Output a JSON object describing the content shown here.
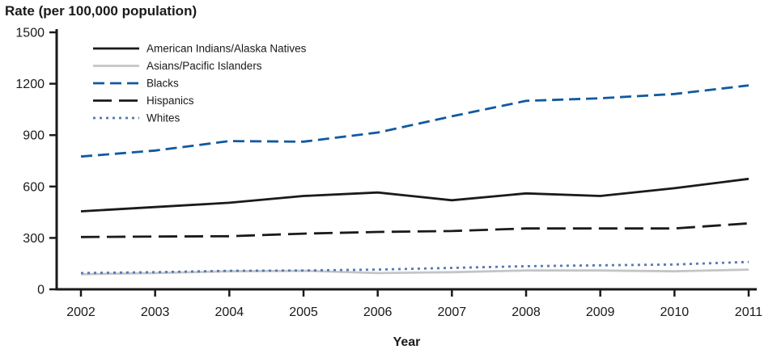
{
  "title": "Rate (per 100,000 population)",
  "xlabel": "Year",
  "colors": {
    "axis": "#1a1a1a",
    "black_line": "#1a1a1a",
    "gray_line": "#c3c5c7",
    "blue_dashed": "#1259a0",
    "blue_dotted": "#5479b4"
  },
  "chart_data": {
    "type": "line",
    "x": [
      2002,
      2003,
      2004,
      2005,
      2006,
      2007,
      2008,
      2009,
      2010,
      2011
    ],
    "ylim": [
      0,
      1500
    ],
    "yticks": [
      0,
      300,
      600,
      900,
      1200,
      1500
    ],
    "grid": false,
    "legend_position": "top-left-inside",
    "series": [
      {
        "name": "American Indians/Alaska Natives",
        "color": "#1a1a1a",
        "dash": "solid",
        "values": [
          455,
          480,
          505,
          545,
          565,
          520,
          560,
          545,
          590,
          645
        ]
      },
      {
        "name": "Asians/Pacific Islanders",
        "color": "#c3c5c7",
        "dash": "solid",
        "values": [
          88,
          95,
          105,
          108,
          95,
          100,
          110,
          110,
          105,
          115
        ]
      },
      {
        "name": "Blacks",
        "color": "#1259a0",
        "dash": "dashed",
        "values": [
          775,
          810,
          865,
          862,
          915,
          1010,
          1100,
          1115,
          1140,
          1190
        ]
      },
      {
        "name": "Hispanics",
        "color": "#1a1a1a",
        "dash": "longdash",
        "values": [
          305,
          308,
          310,
          325,
          335,
          340,
          355,
          355,
          355,
          385
        ]
      },
      {
        "name": "Whites",
        "color": "#5479b4",
        "dash": "dotted",
        "values": [
          95,
          100,
          108,
          110,
          115,
          125,
          135,
          140,
          145,
          160
        ]
      }
    ]
  }
}
